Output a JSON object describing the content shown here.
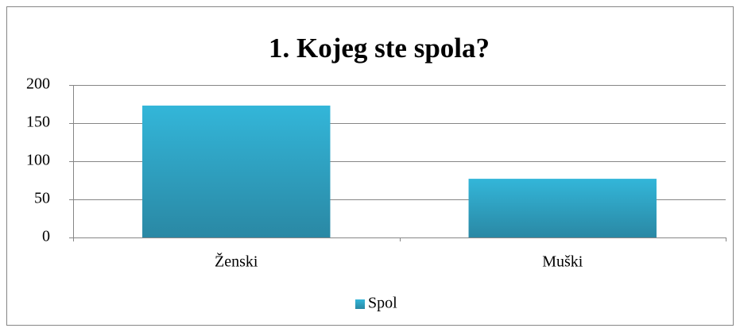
{
  "chart_data": {
    "type": "bar",
    "title": "1. Kojeg ste spola?",
    "categories": [
      "Ženski",
      "Muški"
    ],
    "series": [
      {
        "name": "Spol",
        "color": "#33b6d9",
        "values": [
          173,
          77
        ]
      }
    ],
    "ylim": [
      0,
      200
    ],
    "yticks": [
      0,
      50,
      100,
      150,
      200
    ],
    "grid": true,
    "legend": "bottom"
  }
}
